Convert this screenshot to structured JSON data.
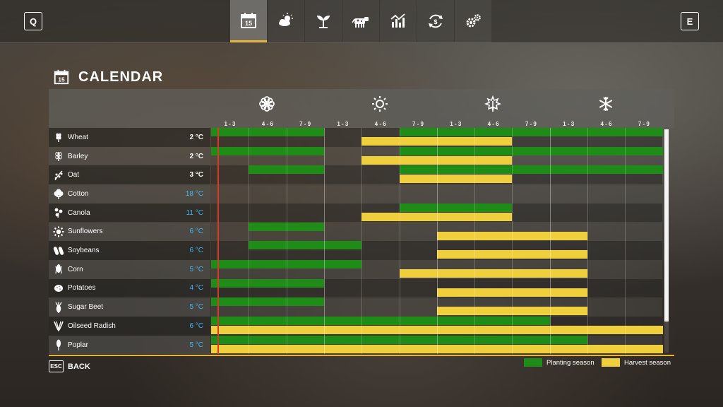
{
  "topbar": {
    "left_key": "Q",
    "right_key": "E",
    "tabs": [
      {
        "icon": "calendar-icon",
        "active": true
      },
      {
        "icon": "weather-icon",
        "active": false
      },
      {
        "icon": "seedling-icon",
        "active": false
      },
      {
        "icon": "cow-icon",
        "active": false
      },
      {
        "icon": "statistics-icon",
        "active": false
      },
      {
        "icon": "finance-icon",
        "active": false
      },
      {
        "icon": "settings-icon",
        "active": false
      }
    ]
  },
  "page": {
    "title": "CALENDAR",
    "calendar_day": "15"
  },
  "calendar": {
    "seasons": [
      {
        "icon": "spring-flower-icon"
      },
      {
        "icon": "summer-sun-icon"
      },
      {
        "icon": "autumn-leaf-icon"
      },
      {
        "icon": "winter-snowflake-icon"
      }
    ],
    "periods": [
      "1 - 3",
      "4 - 6",
      "7 - 9",
      "1 - 3",
      "4 - 6",
      "7 - 9",
      "1 - 3",
      "4 - 6",
      "7 - 9",
      "1 - 3",
      "4 - 6",
      "7 - 9"
    ],
    "crops": [
      {
        "name": "Wheat",
        "temp": "2 °C",
        "cold": false,
        "icon": "wheat-icon",
        "planting": [
          [
            0,
            3
          ],
          [
            5,
            12
          ]
        ],
        "harvest": [
          [
            4,
            8
          ]
        ]
      },
      {
        "name": "Barley",
        "temp": "2 °C",
        "cold": false,
        "icon": "barley-icon",
        "planting": [
          [
            0,
            3
          ],
          [
            5,
            12
          ]
        ],
        "harvest": [
          [
            4,
            8
          ]
        ]
      },
      {
        "name": "Oat",
        "temp": "3 °C",
        "cold": false,
        "icon": "oat-icon",
        "planting": [
          [
            1,
            3
          ],
          [
            5,
            12
          ]
        ],
        "harvest": [
          [
            5,
            8
          ]
        ]
      },
      {
        "name": "Cotton",
        "temp": "18 °C",
        "cold": true,
        "icon": "cotton-icon",
        "planting": [],
        "harvest": []
      },
      {
        "name": "Canola",
        "temp": "11 °C",
        "cold": true,
        "icon": "canola-icon",
        "planting": [
          [
            5,
            8
          ]
        ],
        "harvest": [
          [
            4,
            8
          ]
        ]
      },
      {
        "name": "Sunflowers",
        "temp": "6 °C",
        "cold": true,
        "icon": "sunflower-icon",
        "planting": [
          [
            1,
            3
          ]
        ],
        "harvest": [
          [
            6,
            10
          ]
        ]
      },
      {
        "name": "Soybeans",
        "temp": "6 °C",
        "cold": true,
        "icon": "soybean-icon",
        "planting": [
          [
            1,
            4
          ]
        ],
        "harvest": [
          [
            6,
            10
          ]
        ]
      },
      {
        "name": "Corn",
        "temp": "5 °C",
        "cold": true,
        "icon": "corn-icon",
        "planting": [
          [
            0,
            4
          ]
        ],
        "harvest": [
          [
            5,
            10
          ]
        ]
      },
      {
        "name": "Potatoes",
        "temp": "4 °C",
        "cold": true,
        "icon": "potato-icon",
        "planting": [
          [
            0,
            3
          ]
        ],
        "harvest": [
          [
            6,
            10
          ]
        ]
      },
      {
        "name": "Sugar Beet",
        "temp": "5 °C",
        "cold": true,
        "icon": "sugar-beet-icon",
        "planting": [
          [
            0,
            3
          ]
        ],
        "harvest": [
          [
            6,
            10
          ]
        ]
      },
      {
        "name": "Oilseed Radish",
        "temp": "6 °C",
        "cold": true,
        "icon": "oilseed-radish-icon",
        "planting": [
          [
            0,
            9
          ]
        ],
        "harvest": [
          [
            0,
            12
          ]
        ]
      },
      {
        "name": "Poplar",
        "temp": "5 °C",
        "cold": true,
        "icon": "poplar-icon",
        "planting": [
          [
            0,
            10
          ]
        ],
        "harvest": [
          [
            0,
            12
          ]
        ]
      }
    ]
  },
  "footer": {
    "esc_key": "ESC",
    "back_label": "BACK",
    "legend_planting": "Planting season",
    "legend_harvest": "Harvest season",
    "planting_color": "#1f8c18",
    "harvest_color": "#f0cf3c"
  }
}
